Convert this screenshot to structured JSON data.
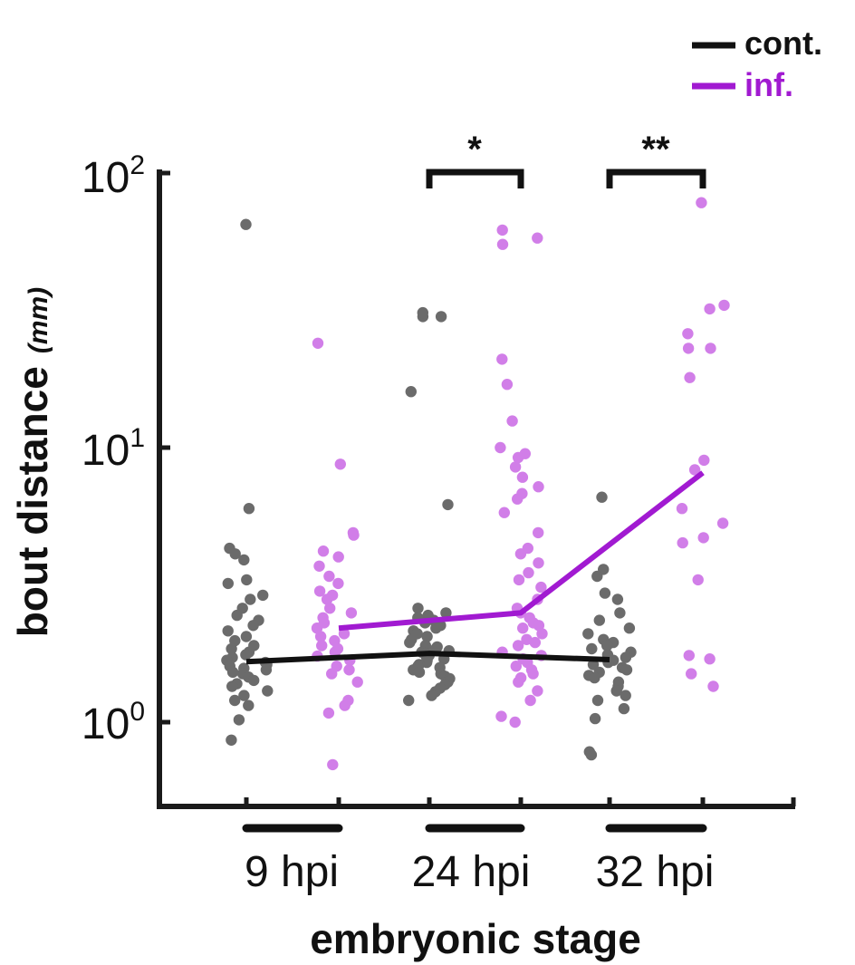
{
  "chart_data": {
    "type": "scatter",
    "ylabel": "bout distance",
    "ylabel_unit": "(mm)",
    "xlabel": "embryonic stage",
    "y_scale": "log",
    "ylim": [
      0.32,
      100
    ],
    "y_ticks": [
      {
        "value": 1,
        "base": "10",
        "exp": "0"
      },
      {
        "value": 10,
        "base": "10",
        "exp": "1"
      },
      {
        "value": 100,
        "base": "10",
        "exp": "2"
      }
    ],
    "categories": [
      "9 hpi",
      "24 hpi",
      "32 hpi"
    ],
    "legend": [
      {
        "name": "cont.",
        "color": "#111111"
      },
      {
        "name": "inf.",
        "color": "#a11ad1"
      }
    ],
    "colors": {
      "cont_points": "#6b6b6b",
      "inf_points": "#d17ee8",
      "cont_line": "#111111",
      "inf_line": "#a11ad1"
    },
    "series": [
      {
        "name": "cont.",
        "medians": [
          1.66,
          1.78,
          1.69
        ],
        "points": [
          [
            65,
            6.0,
            4.3,
            4.1,
            3.9,
            3.3,
            3.2,
            2.9,
            2.8,
            2.6,
            2.45,
            2.35,
            2.25,
            2.15,
            2.05,
            1.98,
            1.9,
            1.85,
            1.8,
            1.76,
            1.72,
            1.68,
            1.65,
            1.62,
            1.6,
            1.57,
            1.55,
            1.52,
            1.5,
            1.46,
            1.42,
            1.38,
            1.35,
            1.3,
            1.25,
            1.2,
            1.15,
            1.02,
            0.86
          ],
          [
            30,
            30,
            31,
            16,
            6.2,
            2.6,
            2.5,
            2.45,
            2.4,
            2.35,
            2.3,
            2.25,
            2.2,
            2.15,
            2.1,
            2.05,
            2.0,
            1.95,
            1.9,
            1.88,
            1.85,
            1.82,
            1.8,
            1.78,
            1.75,
            1.72,
            1.7,
            1.68,
            1.65,
            1.62,
            1.6,
            1.58,
            1.55,
            1.52,
            1.5,
            1.47,
            1.44,
            1.4,
            1.37,
            1.33,
            1.29,
            1.25,
            1.2
          ],
          [
            6.6,
            3.6,
            3.4,
            2.95,
            2.8,
            2.5,
            2.35,
            2.2,
            2.1,
            2.0,
            1.95,
            1.9,
            1.85,
            1.8,
            1.76,
            1.72,
            1.68,
            1.65,
            1.62,
            1.58,
            1.55,
            1.52,
            1.48,
            1.45,
            1.4,
            1.35,
            1.3,
            1.25,
            1.2,
            1.12,
            1.03,
            0.78,
            0.76
          ]
        ]
      },
      {
        "name": "inf.",
        "medians": [
          2.2,
          2.5,
          8.1
        ],
        "points": [
          [
            24,
            8.7,
            4.9,
            4.8,
            4.2,
            4.0,
            3.7,
            3.4,
            3.2,
            3.0,
            2.9,
            2.8,
            2.6,
            2.5,
            2.4,
            2.3,
            2.2,
            2.1,
            2.05,
            1.98,
            1.9,
            1.85,
            1.8,
            1.74,
            1.68,
            1.6,
            1.55,
            1.5,
            1.4,
            1.2,
            1.15,
            1.08,
            0.7
          ],
          [
            62,
            58,
            55,
            21,
            17,
            12.5,
            10,
            9.5,
            9.2,
            8.5,
            7.8,
            7.2,
            6.8,
            6.5,
            5.8,
            4.9,
            4.3,
            4.1,
            3.8,
            3.5,
            3.3,
            3.1,
            2.8,
            2.6,
            2.5,
            2.4,
            2.3,
            2.25,
            2.2,
            2.1,
            2.0,
            1.95,
            1.9,
            1.8,
            1.75,
            1.7,
            1.65,
            1.6,
            1.55,
            1.5,
            1.45,
            1.4,
            1.3,
            1.2,
            1.05,
            1.0
          ],
          [
            78,
            33,
            32,
            26,
            23,
            23,
            18,
            9.0,
            8.3,
            6.0,
            5.3,
            4.7,
            4.5,
            3.3,
            1.75,
            1.7,
            1.5,
            1.35
          ]
        ]
      }
    ],
    "significance": [
      {
        "between": "24 hpi",
        "label": "*"
      },
      {
        "between": "32 hpi",
        "label": "**"
      }
    ]
  }
}
